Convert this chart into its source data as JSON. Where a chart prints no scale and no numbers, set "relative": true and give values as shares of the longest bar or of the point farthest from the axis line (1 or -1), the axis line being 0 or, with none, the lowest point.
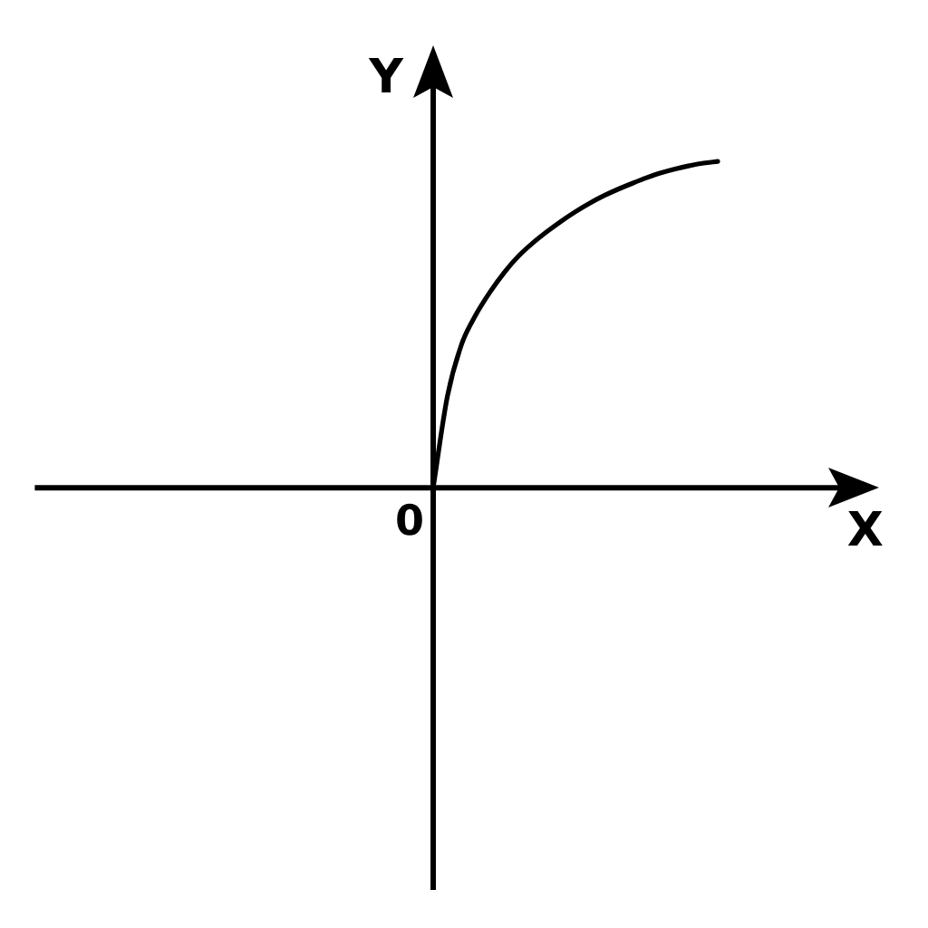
{
  "chart_data": {
    "type": "line",
    "relative": true,
    "xlabel": "X",
    "ylabel": "Y",
    "annotations": [
      "0"
    ],
    "color": "#000000",
    "categories": [
      null,
      null,
      null,
      null,
      null,
      null,
      null,
      null,
      null,
      null,
      null,
      null,
      null,
      null,
      null,
      null,
      null,
      null,
      null,
      null,
      null,
      null,
      null,
      null,
      null,
      null,
      null,
      null,
      null,
      null,
      null,
      null,
      null,
      null,
      null,
      null,
      null,
      null,
      null,
      null,
      null,
      null,
      null,
      null,
      null,
      null,
      null,
      null,
      null,
      null,
      null,
      null,
      null,
      null,
      null,
      null,
      null,
      null,
      null,
      null
    ],
    "values": [
      null,
      null,
      null,
      null,
      null,
      null,
      null,
      null,
      null,
      null,
      null,
      null,
      null,
      null,
      null,
      null,
      null,
      null,
      null,
      null,
      null,
      null,
      null,
      null,
      null,
      null,
      null,
      null,
      0,
      0.28,
      0.44,
      0.53,
      0.6,
      0.66,
      0.71,
      0.75,
      0.785,
      0.817,
      0.846,
      0.872,
      0.895,
      0.915,
      0.933,
      0.95,
      0.965,
      0.977,
      0.987,
      0.995,
      1,
      null,
      null,
      null,
      null,
      null,
      null,
      null,
      null,
      null,
      null,
      null
    ]
  }
}
